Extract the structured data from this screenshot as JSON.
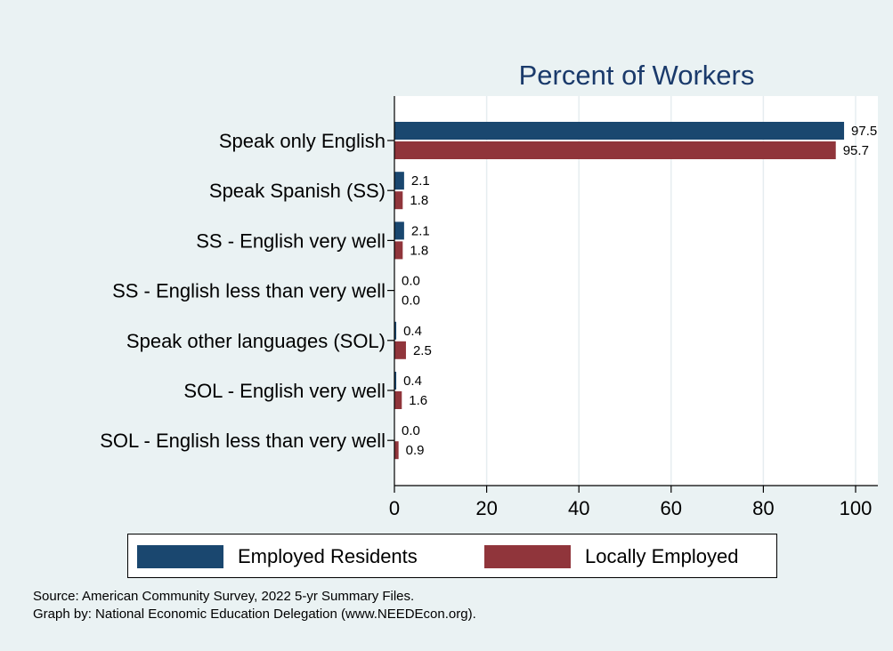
{
  "chart_data": {
    "type": "bar",
    "orientation": "horizontal",
    "title": "Percent of Workers",
    "categories": [
      "Speak only English",
      "Speak Spanish (SS)",
      "SS - English very well",
      "SS - English less than very well",
      "Speak other languages (SOL)",
      "SOL - English very well",
      "SOL - English less than very well"
    ],
    "series": [
      {
        "name": "Employed Residents",
        "color": "#1a476f",
        "values": [
          97.5,
          2.1,
          2.1,
          0.0,
          0.4,
          0.4,
          0.0
        ],
        "labels": [
          "97.5",
          "2.1",
          "2.1",
          "0.0",
          "0.4",
          "0.4",
          "0.0"
        ]
      },
      {
        "name": "Locally Employed",
        "color": "#90353b",
        "values": [
          95.7,
          1.8,
          1.8,
          0.0,
          2.5,
          1.6,
          0.9
        ],
        "labels": [
          "95.7",
          "1.8",
          "1.8",
          "0.0",
          "2.5",
          "1.6",
          "0.9"
        ]
      }
    ],
    "xlim": [
      0,
      100
    ],
    "xticks": [
      "0",
      "20",
      "40",
      "60",
      "80",
      "100"
    ],
    "grid": true,
    "legend_position": "bottom"
  },
  "notes": {
    "source": "Source: American Community Survey, 2022 5-yr Summary Files.",
    "graph_by": "Graph by: National Economic Education Delegation (www.NEEDEcon.org)."
  }
}
